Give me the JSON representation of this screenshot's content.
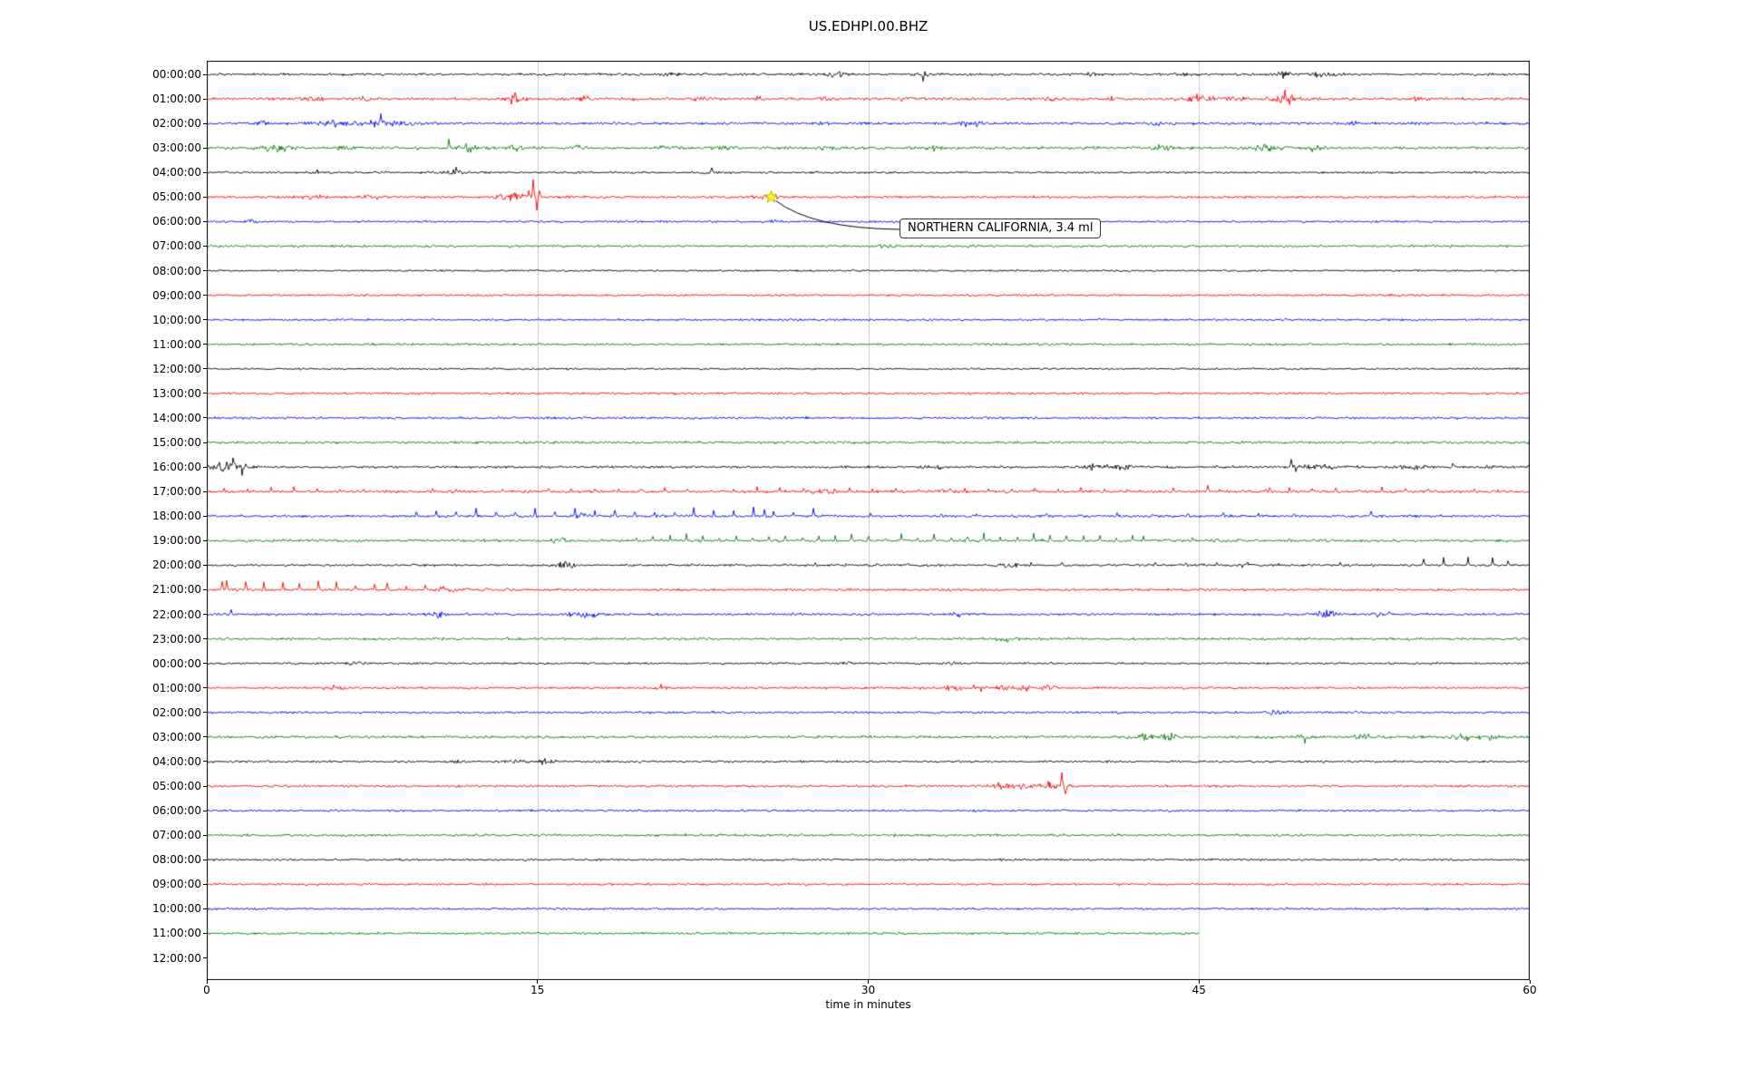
{
  "annotation": {
    "text": "NORTHERN CALIFORNIA, 3.4 ml",
    "row_label": "05:00:00",
    "row_index": 5,
    "x_minutes": 25.6,
    "star_color": "#ffff00"
  },
  "chart_data": {
    "type": "line",
    "title": "US.EDHPI.00.BHZ",
    "xlabel": "time in minutes",
    "xlim": [
      0,
      60
    ],
    "x_ticks": [
      0,
      15,
      30,
      45,
      60
    ],
    "grid_x": [
      15,
      30,
      45
    ],
    "grid_color": "#c8c8c8",
    "colors_cycle": [
      "#000000",
      "#ff0000",
      "#0000ff",
      "#008000"
    ],
    "rows": [
      {
        "label": "00:00:00",
        "color": "#000000",
        "base": 1.3,
        "extent": 60,
        "bursts": [
          [
            21,
            0.3,
            1.5
          ],
          [
            28.6,
            0.4,
            2.5
          ],
          [
            32.4,
            0.25,
            3
          ],
          [
            40.2,
            0.3,
            1.8
          ],
          [
            44.2,
            0.3,
            2
          ],
          [
            48.8,
            0.6,
            2.2
          ],
          [
            50.5,
            0.8,
            2.2
          ]
        ],
        "spikes": [
          [
            28.7,
            4
          ],
          [
            32.5,
            -7
          ],
          [
            40.2,
            3
          ]
        ]
      },
      {
        "label": "01:00:00",
        "color": "#ff0000",
        "base": 1.4,
        "extent": 60,
        "bursts": [
          [
            4.9,
            0.4,
            2
          ],
          [
            7.2,
            0.3,
            1.8
          ],
          [
            13.9,
            0.5,
            3.5
          ],
          [
            17.2,
            0.3,
            2.2
          ],
          [
            19.1,
            0.25,
            2
          ],
          [
            22.4,
            0.3,
            2.2
          ],
          [
            25,
            0.3,
            1.8
          ],
          [
            28.2,
            0.4,
            2
          ],
          [
            31.5,
            0.3,
            1.8
          ],
          [
            38.2,
            0.3,
            2
          ],
          [
            41,
            0.3,
            1.8
          ],
          [
            44.8,
            0.7,
            2.8
          ],
          [
            46.5,
            0.4,
            2.2
          ],
          [
            48.9,
            0.6,
            3.5
          ],
          [
            54.8,
            0.4,
            2
          ]
        ],
        "spikes": [
          [
            14,
            6
          ],
          [
            48.9,
            8
          ],
          [
            49.1,
            -5
          ]
        ]
      },
      {
        "label": "02:00:00",
        "color": "#0000ff",
        "base": 1.4,
        "extent": 60,
        "bursts": [
          [
            2.5,
            0.3,
            1.8
          ],
          [
            5.7,
            0.7,
            2.8
          ],
          [
            7.9,
            0.8,
            3.2
          ],
          [
            9.3,
            0.4,
            2.2
          ],
          [
            27.9,
            0.3,
            2.2
          ],
          [
            34.8,
            0.5,
            3
          ],
          [
            43.2,
            0.3,
            1.8
          ],
          [
            52,
            0.3,
            1.5
          ]
        ],
        "spikes": [
          [
            7.9,
            5
          ]
        ]
      },
      {
        "label": "03:00:00",
        "color": "#008000",
        "base": 1.5,
        "extent": 60,
        "bursts": [
          [
            3.3,
            0.7,
            2.8
          ],
          [
            6.2,
            0.3,
            1.8
          ],
          [
            11.9,
            0.6,
            3
          ],
          [
            14,
            0.3,
            2
          ],
          [
            16.9,
            0.3,
            2.2
          ],
          [
            21,
            0.4,
            2.2
          ],
          [
            23.4,
            0.3,
            2
          ],
          [
            28.2,
            0.4,
            2.4
          ],
          [
            33,
            0.3,
            1.8
          ],
          [
            37.5,
            0.3,
            1.8
          ],
          [
            43.4,
            0.5,
            2.2
          ],
          [
            48.2,
            0.6,
            2.8
          ],
          [
            50.3,
            0.4,
            2.2
          ]
        ],
        "spikes": [
          [
            11,
            9
          ]
        ]
      },
      {
        "label": "04:00:00",
        "color": "#000000",
        "base": 1.1,
        "extent": 60,
        "bursts": [
          [
            4.9,
            0.3,
            1.6
          ],
          [
            8,
            0.3,
            1.6
          ],
          [
            11.2,
            0.4,
            2.2
          ],
          [
            22.8,
            0.25,
            2
          ]
        ],
        "spikes": [
          [
            11.3,
            4
          ],
          [
            22.9,
            4
          ]
        ]
      },
      {
        "label": "05:00:00",
        "color": "#ff0000",
        "base": 1.3,
        "extent": 60,
        "bursts": [
          [
            4.8,
            0.5,
            2.2
          ],
          [
            7.5,
            0.3,
            1.8
          ],
          [
            13.8,
            0.7,
            4
          ],
          [
            25.5,
            0.5,
            2.8
          ]
        ],
        "spikes": [
          [
            14.6,
            7
          ],
          [
            14.8,
            21
          ],
          [
            14.95,
            -15
          ],
          [
            15.1,
            6
          ]
        ]
      },
      {
        "label": "06:00:00",
        "color": "#0000ff",
        "base": 1.1,
        "extent": 60,
        "bursts": [
          [
            2,
            0.3,
            1.2
          ],
          [
            25.8,
            0.3,
            1.2
          ]
        ]
      },
      {
        "label": "07:00:00",
        "color": "#008000",
        "base": 1.2,
        "extent": 60,
        "bursts": [
          [
            31,
            0.4,
            1.2
          ]
        ]
      },
      {
        "label": "08:00:00",
        "color": "#000000",
        "base": 1.0,
        "extent": 60
      },
      {
        "label": "09:00:00",
        "color": "#ff0000",
        "base": 1.1,
        "extent": 60
      },
      {
        "label": "10:00:00",
        "color": "#0000ff",
        "base": 1.1,
        "extent": 60
      },
      {
        "label": "11:00:00",
        "color": "#008000",
        "base": 1.2,
        "extent": 60
      },
      {
        "label": "12:00:00",
        "color": "#000000",
        "base": 1.0,
        "extent": 60
      },
      {
        "label": "13:00:00",
        "color": "#ff0000",
        "base": 1.1,
        "extent": 60
      },
      {
        "label": "14:00:00",
        "color": "#0000ff",
        "base": 1.2,
        "extent": 60
      },
      {
        "label": "15:00:00",
        "color": "#008000",
        "base": 1.3,
        "extent": 60
      },
      {
        "label": "16:00:00",
        "color": "#000000",
        "base": 1.3,
        "extent": 60,
        "bursts": [
          [
            0.6,
            0.5,
            3
          ],
          [
            1.4,
            0.6,
            3.5
          ],
          [
            33,
            0.3,
            1.8
          ],
          [
            40.3,
            0.7,
            2.8
          ],
          [
            41.5,
            0.4,
            2.4
          ],
          [
            50.5,
            1.0,
            2
          ],
          [
            54.8,
            0.5,
            1.8
          ],
          [
            58,
            0.4,
            1.8
          ]
        ],
        "spikes": [
          [
            1.2,
            8
          ],
          [
            1.6,
            -6
          ],
          [
            49.2,
            9
          ],
          [
            49.4,
            -5
          ],
          [
            56.5,
            4
          ]
        ]
      },
      {
        "label": "17:00:00",
        "color": "#ff0000",
        "base": 1.4,
        "extent": 60,
        "bursts": [
          [
            28,
            0.5,
            3
          ],
          [
            33.8,
            0.4,
            2.4
          ]
        ],
        "spikes": [
          [
            45.4,
            8
          ],
          [
            48.2,
            6
          ]
        ],
        "periodic": [
          [
            0.8,
            59.5,
            1.05,
            3
          ]
        ]
      },
      {
        "label": "18:00:00",
        "color": "#0000ff",
        "base": 1.3,
        "extent": 60,
        "bursts": [
          [
            17,
            0.4,
            2
          ]
        ],
        "spikes": [
          [
            25.3,
            8
          ],
          [
            52.8,
            6
          ]
        ],
        "periodic": [
          [
            9.5,
            27.5,
            0.9,
            7
          ],
          [
            28.5,
            50,
            1.6,
            2.6
          ]
        ]
      },
      {
        "label": "19:00:00",
        "color": "#008000",
        "base": 1.4,
        "extent": 60,
        "bursts": [
          [
            16,
            0.4,
            2.2
          ]
        ],
        "periodic": [
          [
            19.5,
            42,
            0.75,
            5.5
          ],
          [
            42.5,
            50.5,
            1.1,
            3.5
          ]
        ]
      },
      {
        "label": "20:00:00",
        "color": "#000000",
        "base": 1.2,
        "extent": 60,
        "bursts": [
          [
            16.2,
            0.4,
            2.8
          ],
          [
            36.5,
            0.4,
            2.2
          ],
          [
            47,
            0.3,
            1.8
          ]
        ],
        "spikes": [
          [
            16.3,
            5
          ],
          [
            55.2,
            7
          ],
          [
            56.1,
            8
          ],
          [
            57.2,
            9
          ],
          [
            58.3,
            8
          ],
          [
            59,
            6
          ]
        ],
        "periodic": [
          [
            22,
            54,
            1.4,
            2
          ]
        ]
      },
      {
        "label": "21:00:00",
        "color": "#ff0000",
        "base": 1.3,
        "extent": 60,
        "bursts": [
          [
            11,
            0.5,
            2.4
          ]
        ],
        "spikes": [
          [
            0.7,
            9
          ]
        ],
        "periodic": [
          [
            0.9,
            4,
            0.85,
            8
          ],
          [
            4.2,
            8,
            0.85,
            6.5
          ],
          [
            8.2,
            11.5,
            0.85,
            5
          ],
          [
            11.8,
            14,
            0.9,
            3
          ]
        ]
      },
      {
        "label": "22:00:00",
        "color": "#0000ff",
        "base": 1.3,
        "extent": 60,
        "bursts": [
          [
            10.4,
            0.4,
            2.8
          ],
          [
            16.8,
            0.5,
            2.6
          ],
          [
            17.6,
            0.3,
            2.2
          ],
          [
            34,
            0.3,
            1.8
          ],
          [
            50.8,
            0.7,
            2.6
          ],
          [
            53.2,
            0.5,
            2.2
          ]
        ],
        "spikes": [
          [
            1.1,
            5
          ],
          [
            10.5,
            -5
          ]
        ]
      },
      {
        "label": "23:00:00",
        "color": "#008000",
        "base": 1.3,
        "extent": 60,
        "bursts": [
          [
            36.3,
            0.4,
            2.2
          ]
        ]
      },
      {
        "label": "00:00:00",
        "color": "#000000",
        "base": 1.1,
        "extent": 60,
        "bursts": [
          [
            6.8,
            0.4,
            1.8
          ],
          [
            29,
            0.3,
            1.4
          ],
          [
            33.8,
            0.4,
            2
          ]
        ]
      },
      {
        "label": "01:00:00",
        "color": "#ff0000",
        "base": 1.2,
        "extent": 60,
        "bursts": [
          [
            5.8,
            0.4,
            2
          ],
          [
            20.6,
            0.4,
            2.4
          ],
          [
            33.9,
            0.5,
            2.6
          ],
          [
            35,
            0.4,
            2.6
          ],
          [
            36.1,
            0.4,
            2.6
          ],
          [
            37.1,
            0.4,
            2.4
          ],
          [
            38.1,
            0.3,
            2.2
          ]
        ],
        "spikes": [
          [
            34.2,
            -4
          ],
          [
            36,
            4
          ]
        ]
      },
      {
        "label": "02:00:00",
        "color": "#0000ff",
        "base": 1.2,
        "extent": 60,
        "bursts": [
          [
            48.5,
            0.4,
            1.6
          ]
        ]
      },
      {
        "label": "03:00:00",
        "color": "#008000",
        "base": 1.4,
        "extent": 60,
        "bursts": [
          [
            42.6,
            0.7,
            2.8
          ],
          [
            43.7,
            0.4,
            2.4
          ],
          [
            49.7,
            0.4,
            3
          ],
          [
            52.5,
            0.4,
            2.2
          ],
          [
            56.9,
            0.5,
            2.4
          ],
          [
            58.1,
            0.4,
            2.8
          ]
        ],
        "spikes": [
          [
            49.8,
            -6
          ],
          [
            58.2,
            -4
          ]
        ]
      },
      {
        "label": "04:00:00",
        "color": "#000000",
        "base": 1.1,
        "extent": 60,
        "bursts": [
          [
            11.4,
            0.3,
            1.6
          ],
          [
            14,
            0.4,
            1.8
          ],
          [
            15.3,
            0.4,
            2
          ]
        ]
      },
      {
        "label": "05:00:00",
        "color": "#ff0000",
        "base": 1.2,
        "extent": 60,
        "bursts": [
          [
            36.1,
            0.5,
            2.6
          ],
          [
            37.2,
            0.4,
            2.6
          ],
          [
            38.1,
            0.4,
            2.8
          ],
          [
            38.9,
            0.4,
            3
          ]
        ],
        "spikes": [
          [
            38.8,
            13
          ],
          [
            38.95,
            -11
          ]
        ]
      },
      {
        "label": "06:00:00",
        "color": "#0000ff",
        "base": 1.1,
        "extent": 60
      },
      {
        "label": "07:00:00",
        "color": "#008000",
        "base": 1.3,
        "extent": 60
      },
      {
        "label": "08:00:00",
        "color": "#000000",
        "base": 1.1,
        "extent": 60
      },
      {
        "label": "09:00:00",
        "color": "#ff0000",
        "base": 1.1,
        "extent": 60
      },
      {
        "label": "10:00:00",
        "color": "#0000ff",
        "base": 1.1,
        "extent": 60
      },
      {
        "label": "11:00:00",
        "color": "#008000",
        "base": 1.2,
        "extent": 45
      },
      {
        "label": "12:00:00",
        "color": null,
        "base": 0,
        "extent": 0
      }
    ]
  }
}
